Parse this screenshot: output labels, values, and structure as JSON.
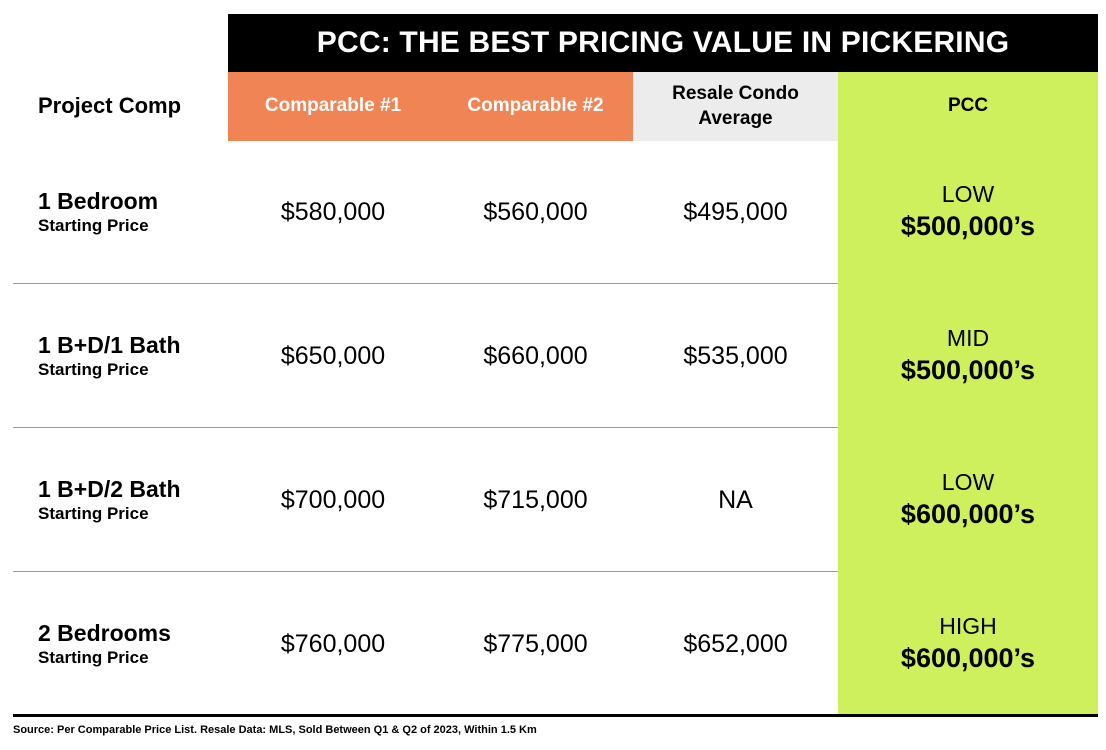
{
  "chart_data": {
    "type": "table",
    "title": "PCC: THE BEST PRICING VALUE IN PICKERING",
    "columns": [
      "Project Comp",
      "Comparable #1",
      "Comparable #2",
      "Resale Condo Average",
      "PCC"
    ],
    "rows": [
      {
        "label": "1 Bedroom",
        "sublabel": "Starting Price",
        "comparable_1": "$580,000",
        "comparable_2": "$560,000",
        "resale_avg": "$495,000",
        "pcc_level": "LOW",
        "pcc_price": "$500,000’s"
      },
      {
        "label": "1 B+D/1 Bath",
        "sublabel": "Starting Price",
        "comparable_1": "$650,000",
        "comparable_2": "$660,000",
        "resale_avg": "$535,000",
        "pcc_level": "MID",
        "pcc_price": "$500,000’s"
      },
      {
        "label": "1 B+D/2 Bath",
        "sublabel": "Starting Price",
        "comparable_1": "$700,000",
        "comparable_2": "$715,000",
        "resale_avg": "NA",
        "pcc_level": "LOW",
        "pcc_price": "$600,000’s"
      },
      {
        "label": "2 Bedrooms",
        "sublabel": "Starting Price",
        "comparable_1": "$760,000",
        "comparable_2": "$775,000",
        "resale_avg": "$652,000",
        "pcc_level": "HIGH",
        "pcc_price": "$600,000’s"
      }
    ],
    "source": "Source: Per Comparable Price List. Resale Data: MLS, Sold Between Q1 & Q2 of 2023, Within 1.5 Km"
  },
  "colors": {
    "banner": "#000000",
    "comparable_header": "#f08454",
    "resale_header": "#ececec",
    "pcc_highlight": "#cdf05c",
    "row_separator": "#9a9a9a"
  }
}
